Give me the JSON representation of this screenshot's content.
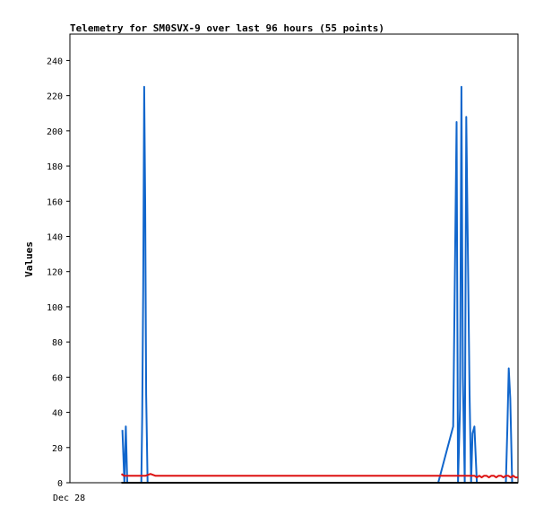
{
  "chart_data": {
    "type": "line",
    "title": "Telemetry for SM0SVX-9 over last 96 hours (55 points)",
    "xlabel": "",
    "ylabel": "Values",
    "x_tick_labels": [
      "Dec 28"
    ],
    "ylim": [
      0,
      255
    ],
    "y_ticks": [
      0,
      20,
      40,
      60,
      80,
      100,
      120,
      140,
      160,
      180,
      200,
      220,
      240
    ],
    "x_range_hours": [
      0,
      96
    ],
    "grid": false,
    "legend": "none",
    "series": [
      {
        "color": "#1166cc",
        "x": [
          14.2,
          14.6,
          14.9,
          15.2,
          18.1,
          18.3,
          18.5,
          18.7,
          18.9,
          19.1,
          19.4,
          79.5,
          82.6,
          83.3,
          83.6,
          84.0,
          84.3,
          84.6,
          85.0,
          85.3,
          85.6,
          86.0,
          86.3,
          86.6,
          87.0,
          87.5,
          93.5,
          93.8,
          94.1,
          94.4,
          94.8
        ],
        "y": [
          30,
          0,
          32,
          0,
          0,
          38,
          110,
          225,
          160,
          50,
          0,
          0,
          32,
          205,
          0,
          42,
          225,
          60,
          0,
          208,
          140,
          50,
          0,
          28,
          32,
          0,
          0,
          30,
          65,
          48,
          0
        ]
      },
      {
        "color": "#dd1111",
        "x": [
          14.0,
          14.5,
          15.0,
          16.0,
          17.0,
          18.0,
          19.0,
          20.0,
          21.0,
          22.0,
          25.0,
          30.0,
          40.0,
          50.0,
          60.0,
          70.0,
          80.0,
          82.0,
          84.0,
          86.0,
          87.0,
          87.5,
          88.0,
          88.5,
          89.0,
          89.5,
          90.0,
          90.5,
          91.0,
          91.5,
          92.0,
          92.5,
          93.0,
          93.5,
          94.0,
          94.5,
          95.0,
          95.5,
          96.0
        ],
        "y": [
          5,
          4,
          4,
          4,
          4,
          4,
          4,
          5,
          4,
          4,
          4,
          4,
          4,
          4,
          4,
          4,
          4,
          4,
          4,
          4,
          4,
          3,
          4,
          3,
          4,
          4,
          3,
          4,
          4,
          3,
          4,
          4,
          3,
          4,
          4,
          3,
          4,
          3,
          3
        ]
      },
      {
        "color": "#000000",
        "x": [
          14.0,
          96.0
        ],
        "y": [
          0,
          0
        ]
      }
    ]
  }
}
